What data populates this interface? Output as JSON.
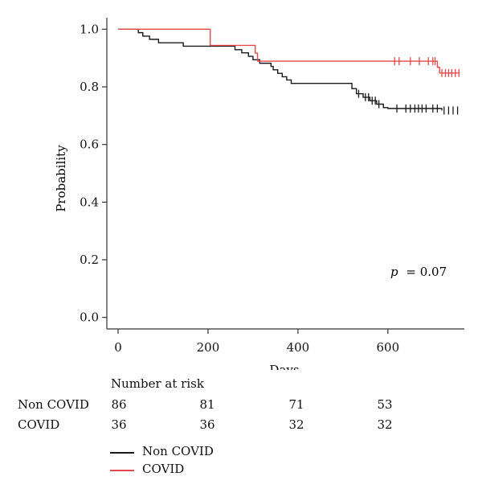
{
  "chart_data": {
    "type": "line",
    "step": true,
    "xlabel": "Days",
    "ylabel": "Probability",
    "xlim": [
      -25,
      770
    ],
    "ylim": [
      -0.04,
      1.04
    ],
    "xticks": [
      "0",
      "200",
      "400",
      "600"
    ],
    "yticks": [
      "0.0",
      "0.2",
      "0.4",
      "0.6",
      "0.8",
      "1.0"
    ],
    "annotation": {
      "italic": "p",
      "rest": "= 0.07"
    },
    "grid": false,
    "series": [
      {
        "name": "Non COVID",
        "color": "#1a1a1a",
        "x": [
          0,
          35,
          45,
          55,
          70,
          90,
          145,
          200,
          260,
          275,
          290,
          300,
          315,
          330,
          340,
          345,
          355,
          365,
          375,
          385,
          400,
          415,
          430,
          520,
          530,
          545,
          560,
          575,
          590,
          600,
          700,
          720
        ],
        "y": [
          1.0,
          1.0,
          0.988,
          0.976,
          0.965,
          0.953,
          0.941,
          0.941,
          0.929,
          0.918,
          0.906,
          0.894,
          0.882,
          0.882,
          0.871,
          0.859,
          0.847,
          0.835,
          0.824,
          0.812,
          0.812,
          0.812,
          0.812,
          0.794,
          0.776,
          0.764,
          0.752,
          0.74,
          0.728,
          0.725,
          0.725,
          0.718
        ],
        "censor_x": [
          535,
          550,
          557,
          565,
          572,
          580,
          620,
          640,
          650,
          660,
          668,
          676,
          685,
          700,
          710,
          725,
          735,
          745,
          755
        ],
        "censor_y": [
          0.776,
          0.764,
          0.764,
          0.752,
          0.752,
          0.74,
          0.725,
          0.725,
          0.725,
          0.725,
          0.725,
          0.725,
          0.725,
          0.725,
          0.725,
          0.718,
          0.718,
          0.718,
          0.718
        ]
      },
      {
        "name": "COVID",
        "color": "#e34a4a",
        "x": [
          0,
          200,
          205,
          300,
          305,
          310,
          700,
          710,
          715,
          760
        ],
        "y": [
          1.0,
          1.0,
          0.944,
          0.944,
          0.917,
          0.889,
          0.889,
          0.868,
          0.848,
          0.848
        ],
        "censor_x": [
          615,
          625,
          650,
          670,
          690,
          700,
          705,
          720,
          728,
          735,
          742,
          750,
          758
        ],
        "censor_y": [
          0.889,
          0.889,
          0.889,
          0.889,
          0.889,
          0.889,
          0.889,
          0.848,
          0.848,
          0.848,
          0.848,
          0.848,
          0.848
        ]
      }
    ]
  },
  "risk_table": {
    "title": "Number at risk",
    "rows": [
      {
        "label": "Non COVID",
        "values": [
          "86",
          "81",
          "71",
          "53"
        ]
      },
      {
        "label": "COVID",
        "values": [
          "36",
          "36",
          "32",
          "32"
        ]
      }
    ]
  },
  "legend": [
    {
      "label": "Non COVID",
      "color": "#1a1a1a"
    },
    {
      "label": "COVID",
      "color": "#e34a4a"
    }
  ]
}
